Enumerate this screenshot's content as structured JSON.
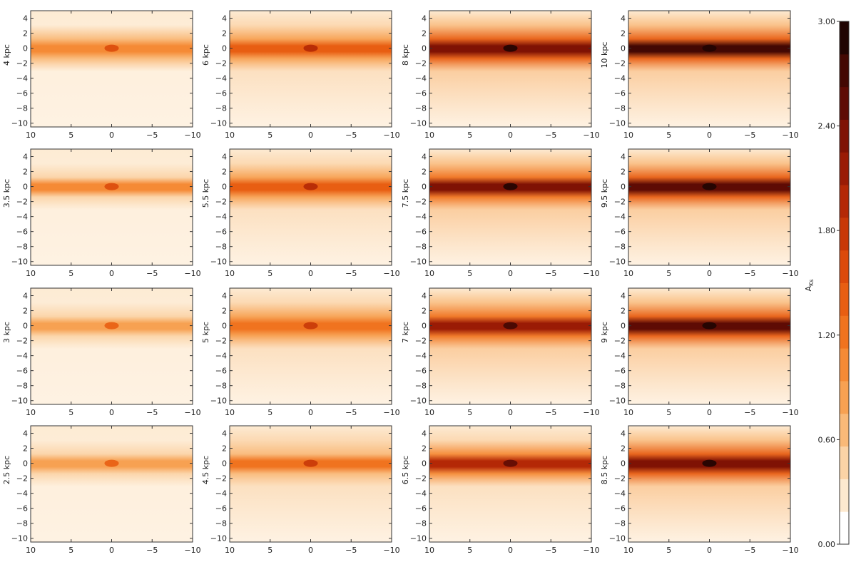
{
  "chart_data": {
    "type": "heatmap",
    "layout": {
      "rows": 4,
      "cols": 4
    },
    "panels": [
      {
        "row": 0,
        "col": 0,
        "distance_label": "4 kpc",
        "disk_level": 0.32
      },
      {
        "row": 0,
        "col": 1,
        "distance_label": "6 kpc",
        "disk_level": 0.48
      },
      {
        "row": 0,
        "col": 2,
        "distance_label": "8 kpc",
        "disk_level": 0.82
      },
      {
        "row": 0,
        "col": 3,
        "distance_label": "10 kpc",
        "disk_level": 0.9
      },
      {
        "row": 1,
        "col": 0,
        "distance_label": "3.5 kpc",
        "disk_level": 0.3
      },
      {
        "row": 1,
        "col": 1,
        "distance_label": "5.5 kpc",
        "disk_level": 0.45
      },
      {
        "row": 1,
        "col": 2,
        "distance_label": "7.5 kpc",
        "disk_level": 0.78
      },
      {
        "row": 1,
        "col": 3,
        "distance_label": "9.5 kpc",
        "disk_level": 0.88
      },
      {
        "row": 2,
        "col": 0,
        "distance_label": "3 kpc",
        "disk_level": 0.27
      },
      {
        "row": 2,
        "col": 1,
        "distance_label": "5 kpc",
        "disk_level": 0.43
      },
      {
        "row": 2,
        "col": 2,
        "distance_label": "7 kpc",
        "disk_level": 0.72
      },
      {
        "row": 2,
        "col": 3,
        "distance_label": "9 kpc",
        "disk_level": 0.85
      },
      {
        "row": 3,
        "col": 0,
        "distance_label": "2.5 kpc",
        "disk_level": 0.24
      },
      {
        "row": 3,
        "col": 1,
        "distance_label": "4.5 kpc",
        "disk_level": 0.4
      },
      {
        "row": 3,
        "col": 2,
        "distance_label": "6.5 kpc",
        "disk_level": 0.65
      },
      {
        "row": 3,
        "col": 3,
        "distance_label": "8.5 kpc",
        "disk_level": 0.8
      }
    ],
    "x_ticks": [
      "10",
      "5",
      "0",
      "−5",
      "−10"
    ],
    "x_tick_values": [
      10,
      5,
      0,
      -5,
      -10
    ],
    "xlim": [
      10,
      -10
    ],
    "y_ticks": [
      "4",
      "2",
      "0",
      "−2",
      "−4",
      "−6",
      "−8",
      "−10"
    ],
    "y_tick_values": [
      4,
      2,
      0,
      -2,
      -4,
      -6,
      -8,
      -10
    ],
    "ylim": [
      -10.5,
      5
    ],
    "colorbar": {
      "label": "A",
      "label_sub": "Ks",
      "range": [
        0.0,
        3.0
      ],
      "tick_labels": [
        "0.00",
        "0.60",
        "1.20",
        "1.80",
        "2.40",
        "3.00"
      ],
      "tick_values": [
        0.0,
        0.6,
        1.2,
        1.8,
        2.4,
        3.0
      ],
      "colors": [
        "#ffffff",
        "#fde9cf",
        "#fbd3a6",
        "#f9b978",
        "#f7a152",
        "#f58a35",
        "#f0731f",
        "#e85e12",
        "#dc4a0b",
        "#c83808",
        "#b42806",
        "#9a1b05",
        "#7f1204",
        "#5e0b04",
        "#430803",
        "#200402"
      ]
    }
  }
}
